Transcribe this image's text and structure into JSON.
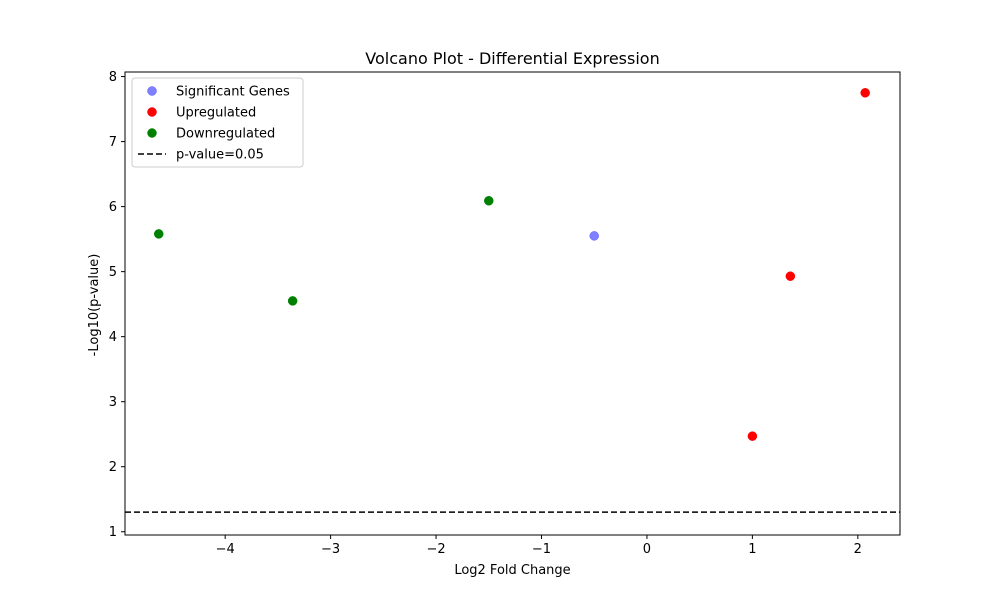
{
  "chart_data": {
    "type": "scatter",
    "title": "Volcano Plot - Differential Expression",
    "xlabel": "Log2 Fold Change",
    "ylabel": "-Log10(p-value)",
    "xlim": [
      -4.95,
      2.4
    ],
    "ylim": [
      0.95,
      8.07
    ],
    "xticks": [
      -4,
      -3,
      -2,
      -1,
      0,
      1,
      2
    ],
    "yticks": [
      1,
      2,
      3,
      4,
      5,
      6,
      7,
      8
    ],
    "grid": false,
    "legend_position": "top-left",
    "series": [
      {
        "name": "Significant Genes",
        "color": "#0000ff",
        "alpha": 0.5,
        "points": [
          {
            "x": -0.5,
            "y": 5.55
          }
        ]
      },
      {
        "name": "Upregulated",
        "color": "#ff0000",
        "alpha": 1,
        "points": [
          {
            "x": 1.0,
            "y": 2.47
          },
          {
            "x": 1.36,
            "y": 4.93
          },
          {
            "x": 2.07,
            "y": 7.75
          }
        ]
      },
      {
        "name": "Downregulated",
        "color": "#008000",
        "alpha": 1,
        "points": [
          {
            "x": -4.63,
            "y": 5.58
          },
          {
            "x": -3.36,
            "y": 4.55
          },
          {
            "x": -1.5,
            "y": 6.09
          }
        ]
      }
    ],
    "threshold_line": {
      "name": "p-value=0.05",
      "y": 1.301,
      "color": "#000000",
      "style": "dashed"
    }
  }
}
